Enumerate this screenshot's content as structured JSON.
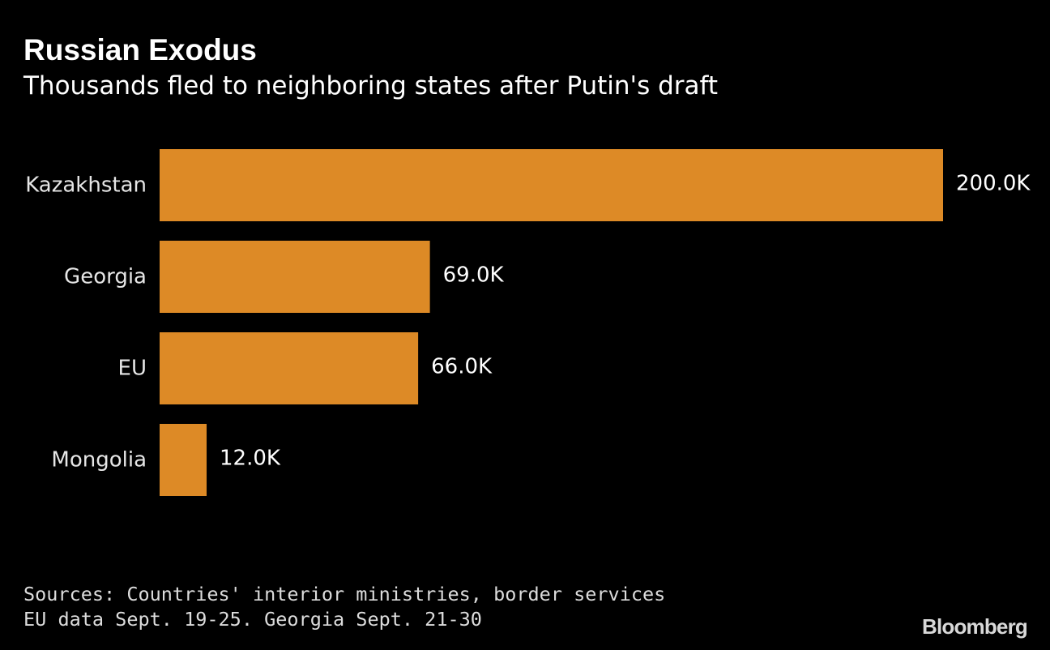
{
  "header": {
    "title": "Russian Exodus",
    "subtitle": "Thousands fled to neighboring states after Putin's draft"
  },
  "chart_data": {
    "type": "bar",
    "orientation": "horizontal",
    "title": "Russian Exodus",
    "subtitle": "Thousands fled to neighboring states after Putin's draft",
    "categories": [
      "Kazakhstan",
      "Georgia",
      "EU",
      "Mongolia"
    ],
    "values": [
      200000,
      69000,
      66000,
      12000
    ],
    "value_labels": [
      "200.0K",
      "69.0K",
      "66.0K",
      "12.0K"
    ],
    "xlim": [
      0,
      200000
    ],
    "bar_color": "#dd8a26",
    "grid": false,
    "legend": false
  },
  "footer": {
    "source_line1": "Sources: Countries' interior ministries, border services",
    "source_line2": "EU data Sept. 19-25. Georgia Sept. 21-30",
    "brand": "Bloomberg"
  },
  "colors": {
    "background": "#000000",
    "bar": "#dd8a26",
    "text": "#ffffff",
    "label_text": "#e6e6e6"
  }
}
